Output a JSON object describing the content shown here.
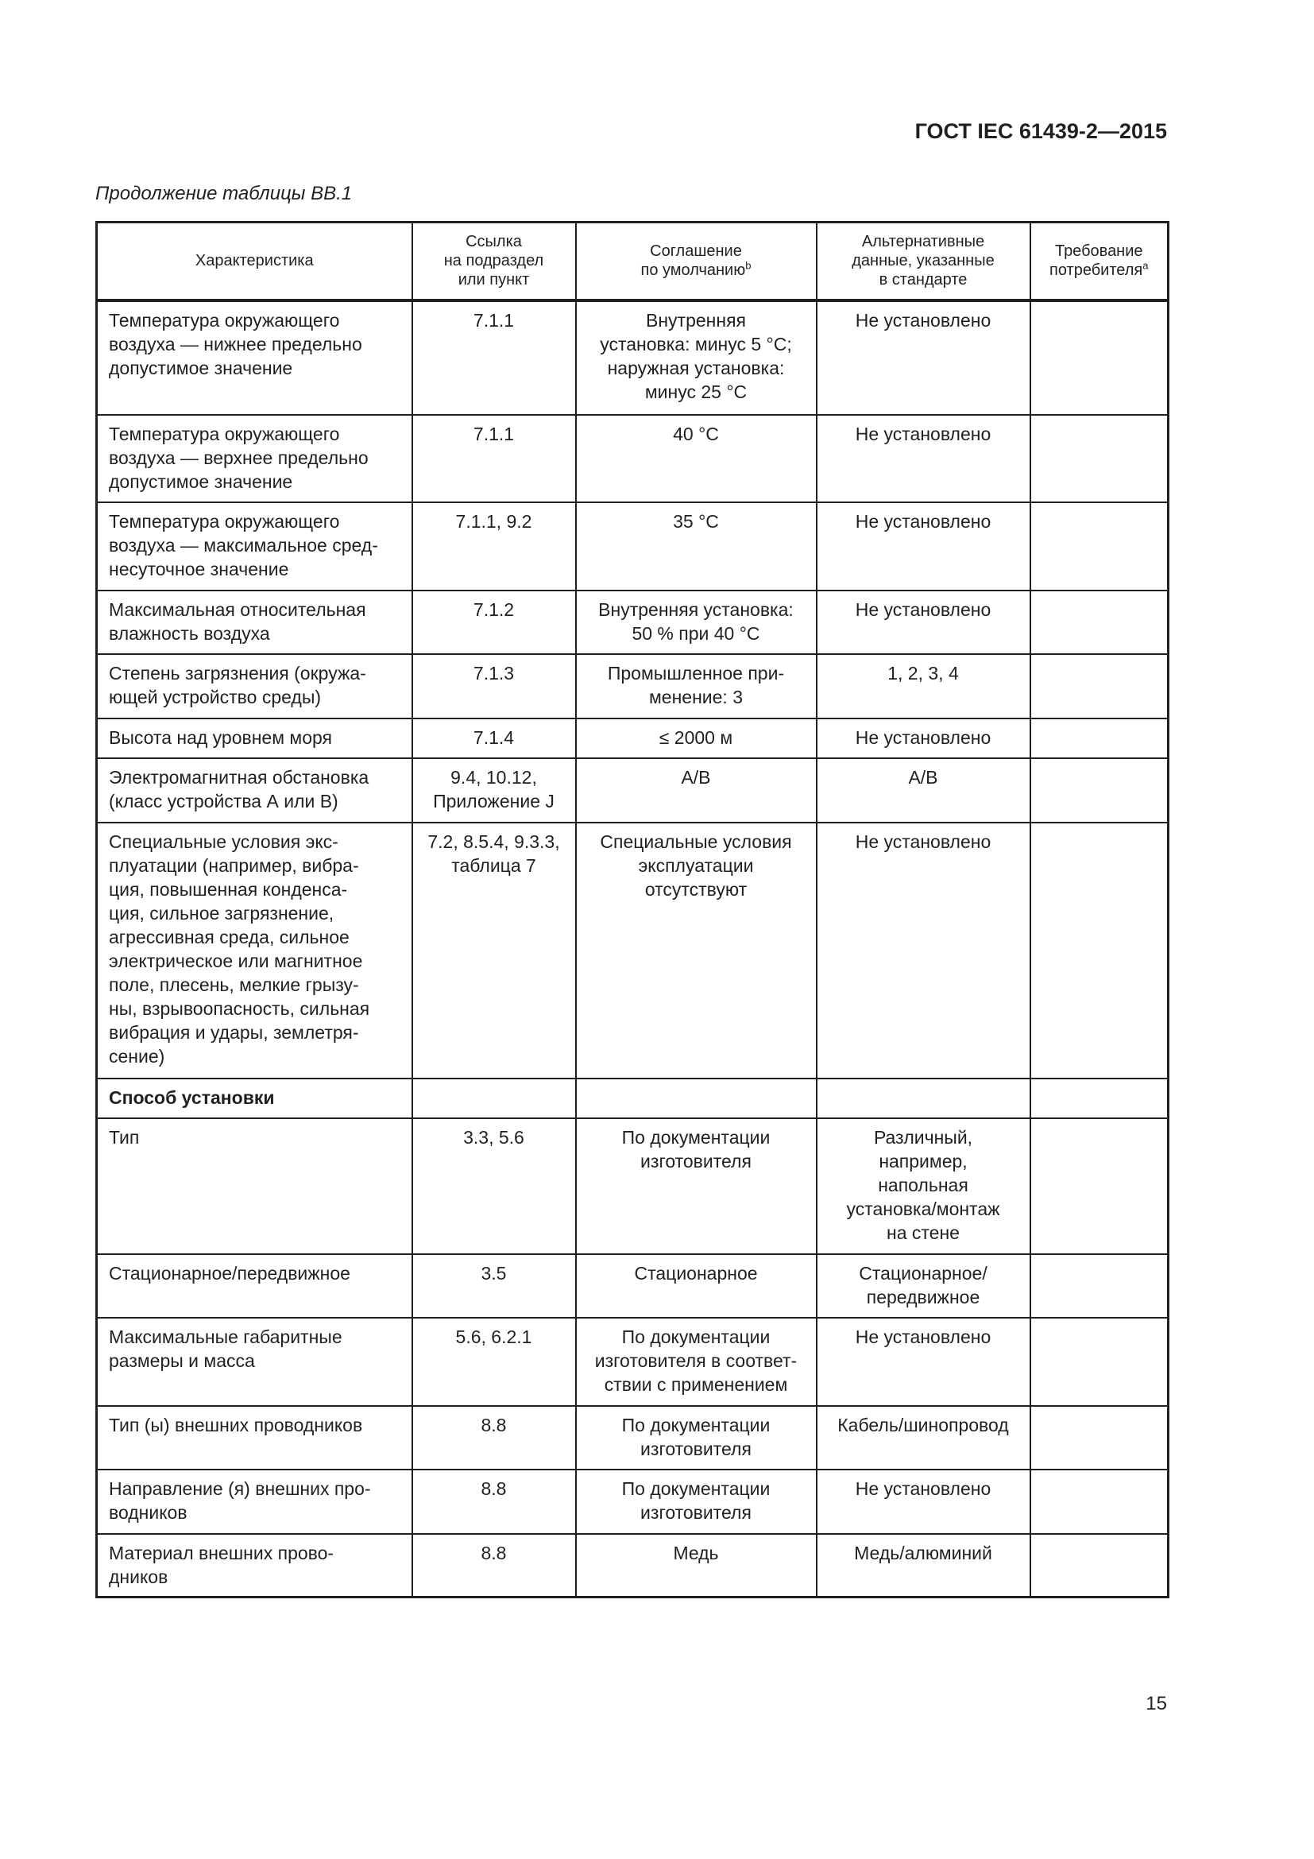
{
  "header": {
    "doc_id": "ГОСТ IEC 61439-2—2015",
    "caption": "Продолжение таблицы ВВ.1"
  },
  "columns": [
    {
      "label": "Характеристика",
      "sup": ""
    },
    {
      "label": "Ссылка\nна подраздел\nили пункт",
      "sup": ""
    },
    {
      "label": "Соглашение\nпо умолчанию",
      "sup": "b"
    },
    {
      "label": "Альтернативные\nданные, указанные\nв стандарте",
      "sup": ""
    },
    {
      "label": "Требование\nпотребителя",
      "sup": "a"
    }
  ],
  "rows": [
    {
      "c": [
        "Температура окружающего\nвоздуха — нижнее предельно\nдопустимое значение",
        "7.1.1",
        "Внутренняя\nустановка: минус 5 °С;\nнаружная установка:\nминус 25 °С",
        "Не установлено",
        ""
      ]
    },
    {
      "c": [
        "Температура окружающего\nвоздуха — верхнее предельно\nдопустимое значение",
        "7.1.1",
        "40 °С",
        "Не установлено",
        ""
      ]
    },
    {
      "c": [
        "Температура окружающего\nвоздуха — максимальное сред-\nнесуточное значение",
        "7.1.1, 9.2",
        "35 °С",
        "Не установлено",
        ""
      ]
    },
    {
      "c": [
        "Максимальная относительная\nвлажность воздуха",
        "7.1.2",
        "Внутренняя установка:\n50 % при 40 °С",
        "Не установлено",
        ""
      ]
    },
    {
      "c": [
        "Степень загрязнения (окружа-\nющей устройство среды)",
        "7.1.3",
        "Промышленное при-\nменение: 3",
        "1, 2, 3, 4",
        ""
      ]
    },
    {
      "c": [
        "Высота над уровнем моря",
        "7.1.4",
        "≤ 2000 м",
        "Не установлено",
        ""
      ]
    },
    {
      "c": [
        "Электромагнитная обстановка\n(класс устройства А или В)",
        "9.4, 10.12,\nПриложение J",
        "A/B",
        "A/B",
        ""
      ]
    },
    {
      "c": [
        "Специальные условия экс-\nплуатации (например, вибра-\nция, повышенная конденса-\nция, сильное загрязнение,\nагрессивная среда, сильное\nэлектрическое или магнитное\nполе, плесень, мелкие грызу-\nны, взрывоопасность, сильная\nвибрация и удары, землетря-\nсение)",
        "7.2, 8.5.4, 9.3.3,\nтаблица 7",
        "Специальные условия\nэксплуатации\nотсутствуют",
        "Не установлено",
        ""
      ]
    },
    {
      "section": true,
      "c": [
        "Способ установки",
        "",
        "",
        "",
        ""
      ]
    },
    {
      "c": [
        "Тип",
        "3.3, 5.6",
        "По документации\nизготовителя",
        "Различный,\nнапример,\nнапольная\nустановка/монтаж\nна стене",
        ""
      ]
    },
    {
      "c": [
        "Стационарное/передвижное",
        "3.5",
        "Стационарное",
        "Стационарное/\nпередвижное",
        ""
      ]
    },
    {
      "c": [
        "Максимальные габаритные\nразмеры и масса",
        "5.6, 6.2.1",
        "По документации\nизготовителя в соответ-\nствии с применением",
        "Не установлено",
        ""
      ]
    },
    {
      "c": [
        "Тип (ы) внешних проводников",
        "8.8",
        "По документации\nизготовителя",
        "Кабель/шинопровод",
        ""
      ]
    },
    {
      "c": [
        "Направление (я) внешних про-\nводников",
        "8.8",
        "По документации\nизготовителя",
        "Не установлено",
        ""
      ]
    },
    {
      "c": [
        "Материал внешних прово-\nдников",
        "8.8",
        "Медь",
        "Медь/алюминий",
        ""
      ]
    }
  ],
  "footer": {
    "page_number": "15"
  }
}
